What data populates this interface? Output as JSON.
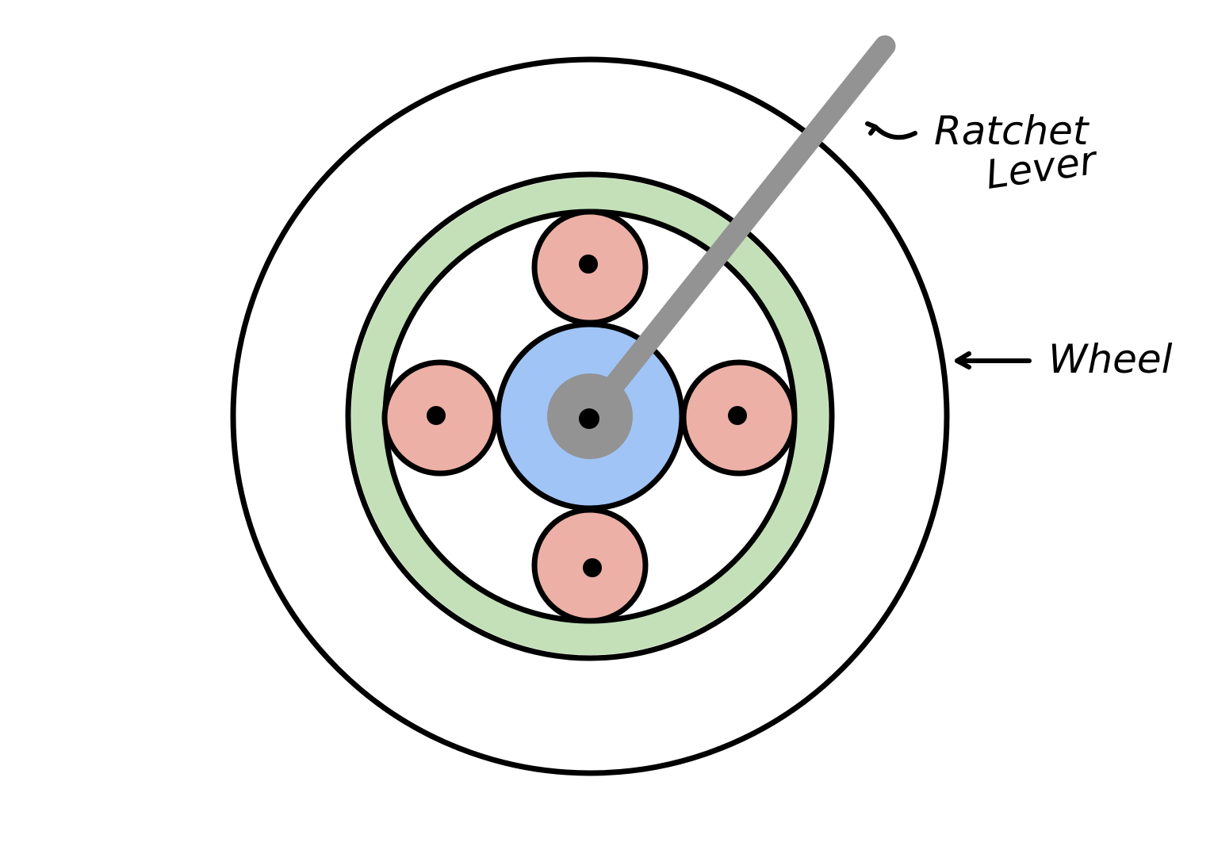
{
  "labels": {
    "ratchet_lever_line1": "Ratchet",
    "ratchet_lever_line2": "Lever",
    "wheel": "Wheel"
  },
  "colors": {
    "outline": "#000000",
    "background": "#ffffff",
    "ring": "#c4e0b8",
    "hub": "#a0c4f6",
    "planet": "#ecb0a6",
    "lever": "#939393",
    "pin": "#000000"
  },
  "icons": {
    "pointer": "arrow-left-icon"
  }
}
